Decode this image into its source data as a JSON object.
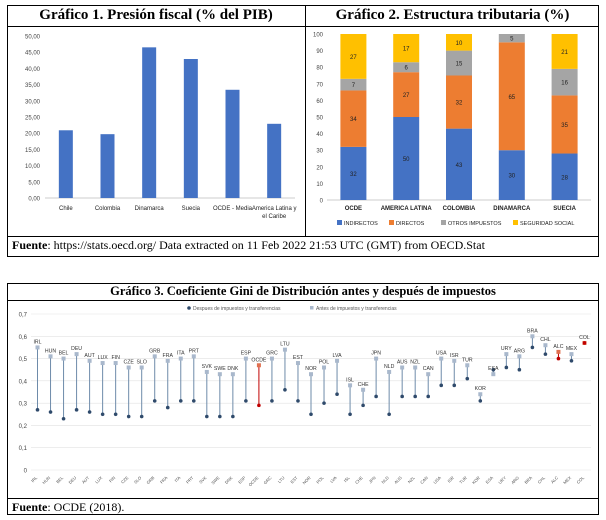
{
  "footer1": {
    "label": "Fuente",
    "text": ": https://stats.oecd.org/ Data extracted on 11 Feb 2022 21:53 UTC (GMT) from OECD.Stat"
  },
  "footer2": {
    "label": "Fuente",
    "text": ": OCDE (2018)."
  },
  "chart_data": [
    {
      "type": "bar",
      "title": "Gráfico 1. Presión fiscal (% del PIB)",
      "categories": [
        "Chile",
        "Colombia",
        "Dinamarca",
        "Suecia",
        "OCDE - Media",
        "America Latina y el Caribe"
      ],
      "values": [
        20.9,
        19.7,
        46.5,
        42.9,
        33.4,
        22.9
      ],
      "ylim": [
        0,
        50
      ],
      "yticks": [
        "0,00",
        "5,00",
        "10,00",
        "15,00",
        "20,00",
        "25,00",
        "30,00",
        "35,00",
        "40,00",
        "45,00",
        "50,00"
      ],
      "color": "#4472C4"
    },
    {
      "type": "bar",
      "stacked": true,
      "title": "Gráfico 2. Estructura tributaria (%)",
      "categories": [
        "OCDE",
        "AMERICA LATINA",
        "COLOMBIA",
        "DINAMARCA",
        "SUECIA"
      ],
      "ylim": [
        0,
        100
      ],
      "yticks": [
        "0",
        "10",
        "20",
        "30",
        "40",
        "50",
        "60",
        "70",
        "80",
        "90",
        "100"
      ],
      "series": [
        {
          "name": "INDIRECTOS",
          "color": "#4472C4",
          "values": [
            32,
            50,
            43,
            30,
            28
          ]
        },
        {
          "name": "DIRECTOS",
          "color": "#ED7D31",
          "values": [
            34,
            27,
            32,
            65,
            35
          ]
        },
        {
          "name": "OTROS IMPUESTOS",
          "color": "#A5A5A5",
          "values": [
            7,
            6,
            15,
            5,
            16
          ]
        },
        {
          "name": "SEGURIDAD SOCIAL",
          "color": "#FFC000",
          "values": [
            27,
            17,
            10,
            0,
            21
          ]
        }
      ],
      "labels": [
        [
          "32",
          "34",
          "7",
          "27"
        ],
        [
          "50",
          "27",
          "6",
          "17"
        ],
        [
          "43",
          "32",
          "15",
          "10"
        ],
        [
          "30",
          "65",
          "5",
          ""
        ],
        [
          "28",
          "35",
          "16",
          "21"
        ]
      ],
      "legend": "bottom"
    },
    {
      "type": "dumbbell",
      "title": "Gráfico 3. Coeficiente Gini de Distribución antes y después de impuestos",
      "ylim": [
        0,
        0.7
      ],
      "yticks": [
        "0",
        "0,1",
        "0,2",
        "0,3",
        "0,4",
        "0,5",
        "0,6",
        "0,7"
      ],
      "legend": "top",
      "series_names": [
        "Despues de impuestos y transferencias",
        "Antes de impuestos y transferencias"
      ],
      "categories": [
        "IRL",
        "HUN",
        "BEL",
        "DEU",
        "AUT",
        "LUX",
        "FIN",
        "CZE",
        "SLO",
        "GRB",
        "FRA",
        "ITA",
        "PRT",
        "SVK",
        "SWE",
        "DNK",
        "ESP",
        "OCDE",
        "GRC",
        "LTU",
        "EST",
        "NOR",
        "POL",
        "LVA",
        "ISL",
        "CHE",
        "JPN",
        "NLD",
        "AUS",
        "NZL",
        "CAN",
        "USA",
        "ISR",
        "TUR",
        "KOR",
        "ESA",
        "URY",
        "ARG",
        "BRA",
        "CHL",
        "ALC",
        "MEX",
        "COL"
      ],
      "before": [
        0.55,
        0.51,
        0.5,
        0.52,
        0.49,
        0.48,
        0.48,
        0.46,
        0.46,
        0.51,
        0.49,
        0.5,
        0.51,
        0.44,
        0.43,
        0.43,
        0.5,
        0.47,
        0.5,
        0.54,
        0.48,
        0.43,
        0.46,
        0.49,
        0.38,
        0.36,
        0.5,
        0.44,
        0.46,
        0.46,
        0.43,
        0.5,
        0.49,
        0.47,
        0.34,
        0.43,
        0.52,
        0.51,
        0.6,
        0.56,
        0.53,
        0.52,
        0.57
      ],
      "after": [
        0.27,
        0.26,
        0.23,
        0.27,
        0.26,
        0.25,
        0.25,
        0.24,
        0.24,
        0.31,
        0.28,
        0.31,
        0.31,
        0.24,
        0.24,
        0.24,
        0.31,
        0.29,
        0.31,
        0.36,
        0.31,
        0.25,
        0.3,
        0.34,
        0.25,
        0.29,
        0.33,
        0.25,
        0.33,
        0.33,
        0.33,
        0.38,
        0.38,
        0.41,
        0.31,
        0.45,
        0.46,
        0.45,
        0.55,
        0.52,
        0.5,
        0.49,
        0.57
      ],
      "highlight": [
        "OCDE",
        "ALC",
        "COL"
      ],
      "highlight_color": "#C00000",
      "before_color": "#A9B8CC",
      "after_color": "#2F4A6B"
    }
  ]
}
